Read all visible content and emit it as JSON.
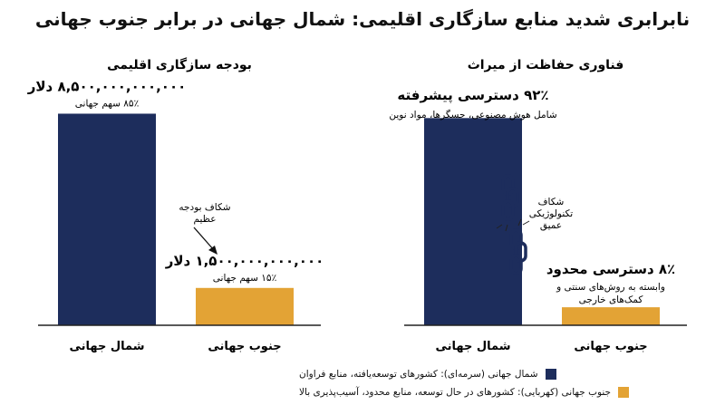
{
  "title": "نابرابری شدید منابع سازگاری اقلیمی: شمال جهانی در برابر جنوب جهانی",
  "colors": {
    "north": "#1d2d5c",
    "south": "#e3a335",
    "axis": "#222222",
    "chain": "#1d2d5c"
  },
  "chart_data": [
    {
      "type": "bar",
      "title": "بودجه سازگاری اقلیمی",
      "categories": [
        "شمال جهانی",
        "جنوب جهانی"
      ],
      "values": [
        8500000000000,
        1500000000000
      ],
      "value_labels": [
        "۸,۵۰۰,۰۰۰,۰۰۰,۰۰۰ دلار",
        "۱,۵۰۰,۰۰۰,۰۰۰,۰۰۰ دلار"
      ],
      "share_labels": [
        "۸۵٪ سهم جهانی",
        "۱۵٪ سهم جهانی"
      ],
      "annotation": [
        "شکاف بودجه",
        "عظیم"
      ],
      "ylim": [
        0,
        9500000000000
      ],
      "grid": false
    },
    {
      "type": "bar",
      "title": "فناوری حفاظت از میراث",
      "categories": [
        "شمال جهانی",
        "جنوب جهانی"
      ],
      "values": [
        92,
        8
      ],
      "value_labels": [
        "۹۲٪ دسترسی پیشرفته",
        "۸٪ دسترسی محدود"
      ],
      "detail_labels": [
        [
          "شامل هوش مصنوعی، حسگرها، مواد نوین"
        ],
        [
          "وابسته به روش‌های سنتی و",
          "کمک‌های خارجی"
        ]
      ],
      "annotation": [
        "شکاف",
        "تکنولوژیکی",
        "عمیق"
      ],
      "ylim": [
        0,
        105
      ],
      "grid": false
    }
  ],
  "legend": [
    {
      "label": "شمال جهانی (سرمه‌ای): کشورهای توسعه‌یافته، منابع فراوان",
      "color_key": "north"
    },
    {
      "label": "جنوب جهانی (کهربایی): کشورهای در حال توسعه، منابع محدود، آسیب‌پذیری بالا",
      "color_key": "south"
    }
  ]
}
